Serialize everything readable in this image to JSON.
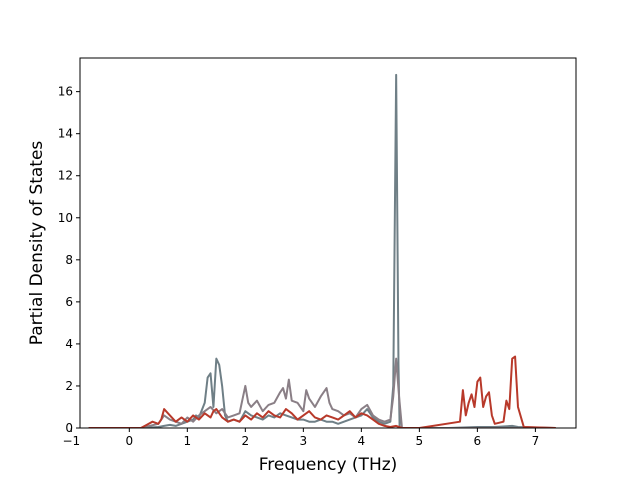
{
  "chart_data": {
    "type": "line",
    "title": "",
    "xlabel": "Frequency (THz)",
    "ylabel": "Partial Density of States",
    "xlim": [
      -0.85,
      7.7
    ],
    "ylim": [
      0,
      17.6
    ],
    "xticks": [
      -1,
      0,
      1,
      2,
      3,
      4,
      5,
      6,
      7
    ],
    "yticks": [
      0,
      2,
      4,
      6,
      8,
      10,
      12,
      14,
      16
    ],
    "grid": false,
    "legend": "none",
    "series": [
      {
        "color": "#6f7f86",
        "x": [
          -0.7,
          0.2,
          0.5,
          0.6,
          0.7,
          0.8,
          0.9,
          1.0,
          1.1,
          1.15,
          1.2,
          1.3,
          1.35,
          1.4,
          1.45,
          1.5,
          1.55,
          1.6,
          1.65,
          1.7,
          1.8,
          1.9,
          2.0,
          2.1,
          2.2,
          2.3,
          2.4,
          2.5,
          2.6,
          2.7,
          2.8,
          2.9,
          3.0,
          3.1,
          3.2,
          3.3,
          3.4,
          3.5,
          3.6,
          3.7,
          3.8,
          3.9,
          4.0,
          4.1,
          4.2,
          4.3,
          4.4,
          4.5,
          4.55,
          4.6,
          4.62,
          4.64,
          4.66,
          4.7,
          5.0,
          5.5,
          6.0,
          6.3,
          6.6,
          6.7,
          7.35
        ],
        "y": [
          0,
          0,
          0.05,
          0.1,
          0.15,
          0.1,
          0.2,
          0.3,
          0.4,
          0.6,
          0.5,
          1.2,
          2.4,
          2.6,
          1.0,
          3.3,
          3.0,
          2.0,
          0.6,
          0.3,
          0.4,
          0.3,
          0.8,
          0.6,
          0.5,
          0.4,
          0.6,
          0.5,
          0.7,
          0.6,
          0.5,
          0.4,
          0.4,
          0.3,
          0.3,
          0.4,
          0.3,
          0.3,
          0.2,
          0.3,
          0.4,
          0.5,
          0.6,
          0.9,
          0.5,
          0.3,
          0.2,
          0.3,
          2.0,
          16.8,
          10.0,
          3.0,
          0.0,
          0.0,
          0,
          0,
          0.05,
          0.05,
          0.1,
          0.05,
          0
        ]
      },
      {
        "color": "#8a7f86",
        "x": [
          -0.7,
          0.2,
          0.5,
          0.6,
          0.7,
          0.9,
          1.0,
          1.1,
          1.2,
          1.3,
          1.4,
          1.5,
          1.6,
          1.7,
          1.8,
          1.9,
          2.0,
          2.05,
          2.1,
          2.2,
          2.3,
          2.4,
          2.5,
          2.6,
          2.65,
          2.7,
          2.75,
          2.8,
          2.9,
          3.0,
          3.05,
          3.1,
          3.2,
          3.3,
          3.4,
          3.45,
          3.5,
          3.6,
          3.7,
          3.8,
          3.9,
          4.0,
          4.1,
          4.2,
          4.3,
          4.4,
          4.5,
          4.55,
          4.6,
          4.65,
          4.7,
          5.0,
          7.35
        ],
        "y": [
          0,
          0,
          0.2,
          0.6,
          0.4,
          0.2,
          0.5,
          0.3,
          0.6,
          0.8,
          1.0,
          0.7,
          0.9,
          0.5,
          0.6,
          0.7,
          2.0,
          1.2,
          1.0,
          1.3,
          0.8,
          1.1,
          1.2,
          1.7,
          1.9,
          1.4,
          2.3,
          1.3,
          1.2,
          0.8,
          1.8,
          1.4,
          1.0,
          1.5,
          1.9,
          1.2,
          0.9,
          0.8,
          0.6,
          0.7,
          0.5,
          0.9,
          1.1,
          0.6,
          0.4,
          0.3,
          0.4,
          1.5,
          3.3,
          1.5,
          0.0,
          0,
          0
        ]
      },
      {
        "color": "#b8392a",
        "x": [
          -0.7,
          0.2,
          0.3,
          0.4,
          0.5,
          0.55,
          0.6,
          0.7,
          0.8,
          0.9,
          1.0,
          1.1,
          1.2,
          1.3,
          1.4,
          1.45,
          1.5,
          1.6,
          1.7,
          1.8,
          1.9,
          2.0,
          2.1,
          2.2,
          2.3,
          2.4,
          2.5,
          2.6,
          2.7,
          2.8,
          2.9,
          3.0,
          3.1,
          3.2,
          3.3,
          3.4,
          3.5,
          3.6,
          3.7,
          3.8,
          3.9,
          4.0,
          4.1,
          4.2,
          4.3,
          4.4,
          4.5,
          4.6,
          4.7,
          5.0,
          5.7,
          5.75,
          5.8,
          5.85,
          5.9,
          5.95,
          6.0,
          6.05,
          6.1,
          6.15,
          6.2,
          6.25,
          6.3,
          6.45,
          6.5,
          6.55,
          6.6,
          6.65,
          6.7,
          6.8,
          7.35
        ],
        "y": [
          0,
          0,
          0.15,
          0.3,
          0.2,
          0.4,
          0.9,
          0.6,
          0.3,
          0.5,
          0.3,
          0.6,
          0.4,
          0.7,
          0.5,
          0.8,
          0.9,
          0.5,
          0.3,
          0.4,
          0.3,
          0.6,
          0.4,
          0.7,
          0.5,
          0.8,
          0.6,
          0.5,
          0.9,
          0.7,
          0.4,
          0.6,
          0.8,
          0.5,
          0.4,
          0.6,
          0.5,
          0.4,
          0.6,
          0.8,
          0.5,
          0.7,
          0.6,
          0.4,
          0.2,
          0.1,
          0.05,
          0.1,
          0.0,
          0,
          0.3,
          1.8,
          0.6,
          1.2,
          1.6,
          1.0,
          2.2,
          2.4,
          1.0,
          1.5,
          1.7,
          0.6,
          0.2,
          0.3,
          1.3,
          0.9,
          3.3,
          3.4,
          1.0,
          0.05,
          0
        ]
      }
    ]
  }
}
